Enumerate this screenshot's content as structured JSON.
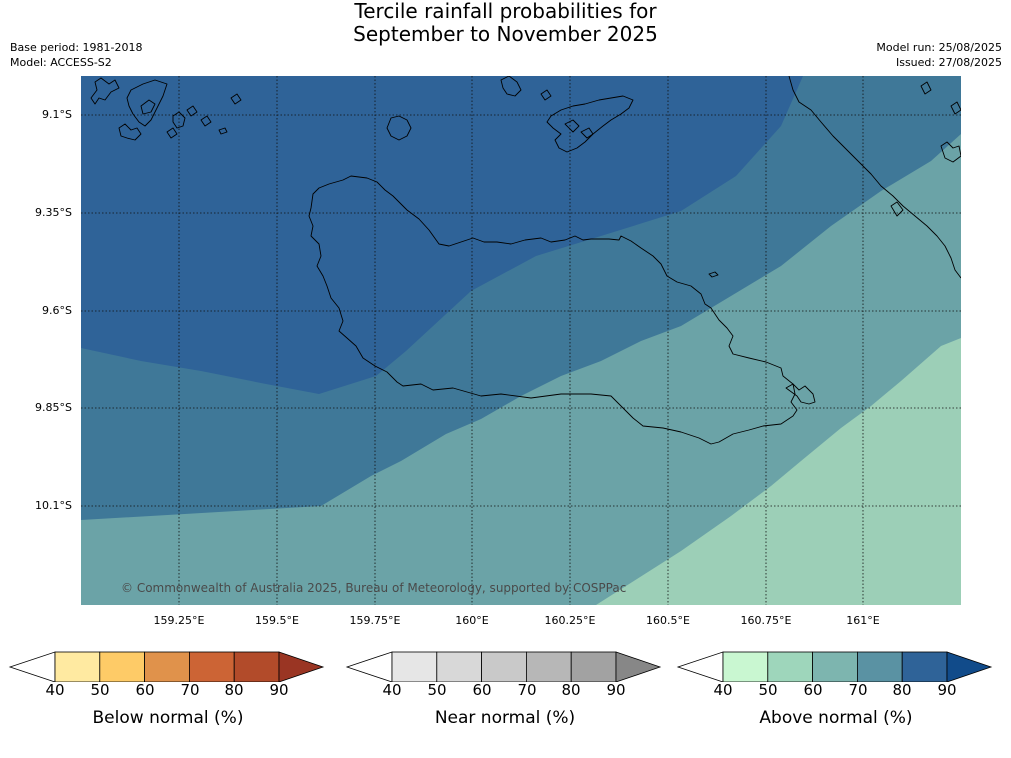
{
  "title_line1": "Tercile rainfall probabilities for",
  "title_line2": "September to November 2025",
  "meta_left": {
    "base_period": "Base period: 1981-2018",
    "model": "Model: ACCESS-S2"
  },
  "meta_right": {
    "model_run": "Model run: 25/08/2025",
    "issued": "Issued: 27/08/2025"
  },
  "map": {
    "lat_ticks": [
      "9.1°S",
      "9.35°S",
      "9.6°S",
      "9.85°S",
      "10.1°S"
    ],
    "lon_ticks": [
      "159.25°E",
      "159.5°E",
      "159.75°E",
      "160°E",
      "160.25°E",
      "160.5°E",
      "160.75°E",
      "161°E"
    ],
    "copyright": "© Commonwealth of Australia 2025, Bureau of Meteorology, supported by COSPPac",
    "colors": {
      "above_80": "#2f6398",
      "above_70": "#3f7898",
      "above_60": "#6ba3a7",
      "above_50": "#9ccfb7"
    }
  },
  "colorbars": [
    {
      "title": "Below normal (%)",
      "ticks": [
        "40",
        "50",
        "60",
        "70",
        "80",
        "90"
      ],
      "colors": [
        "#ffffff",
        "#ffeaa1",
        "#fecb67",
        "#e0924b",
        "#cc6435",
        "#b24b2a",
        "#9a3523"
      ]
    },
    {
      "title": "Near normal (%)",
      "ticks": [
        "40",
        "50",
        "60",
        "70",
        "80",
        "90"
      ],
      "colors": [
        "#ffffff",
        "#e6e6e6",
        "#d8d8d8",
        "#c9c9c9",
        "#b7b7b7",
        "#a2a2a2",
        "#878787"
      ]
    },
    {
      "title": "Above normal (%)",
      "ticks": [
        "40",
        "50",
        "60",
        "70",
        "80",
        "90"
      ],
      "colors": [
        "#ffffff",
        "#c9f7d1",
        "#9ed6bb",
        "#7db5af",
        "#5a92a3",
        "#2f6398",
        "#114b8a"
      ]
    }
  ]
}
